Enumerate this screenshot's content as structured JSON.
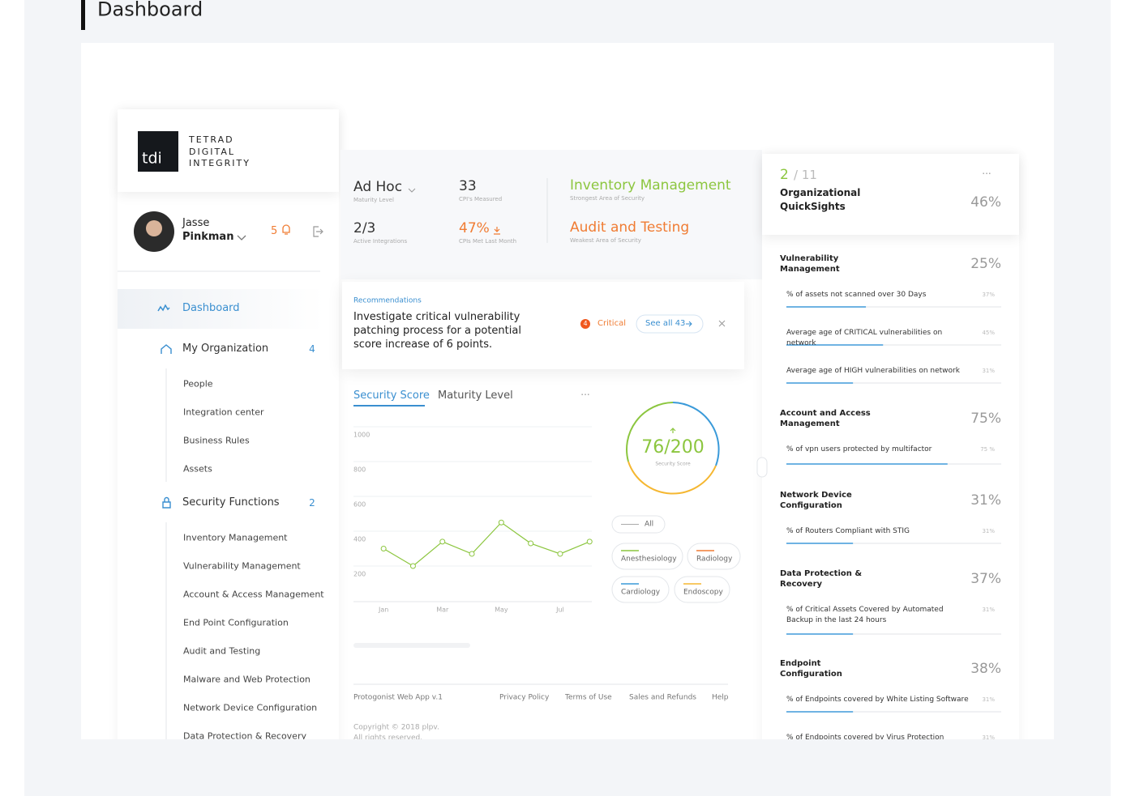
{
  "page_title": "Dashboard",
  "brand": {
    "logo": "tdi",
    "name": "TETRAD DIGITAL INTEGRITY"
  },
  "user": {
    "first_name": "Jasse",
    "last_name": "Pinkman",
    "notifications": "5"
  },
  "nav": {
    "dashboard": "Dashboard",
    "organization": {
      "label": "My Organization",
      "count": "4",
      "items": [
        "People",
        "Integration center",
        "Business Rules",
        "Assets"
      ]
    },
    "security": {
      "label": "Security Functions",
      "count": "2",
      "items": [
        "Inventory Management",
        "Vulnerability Management",
        "Account & Access Management",
        "End Point Configuration",
        "Audit and Testing",
        "Malware and Web Protection",
        "Network Device Configuration",
        "Data Protection & Recovery"
      ]
    }
  },
  "stats": [
    {
      "value": "Ad Hoc",
      "label": "Maturity Level"
    },
    {
      "value": "33",
      "label": "CPI's Measured"
    },
    {
      "value": "2/3",
      "label": "Active Integrations"
    },
    {
      "value": "47%",
      "label": "CPIs Met Last Month"
    }
  ],
  "areas": [
    {
      "value": "Inventory Management",
      "label": "Strongest Area of Security"
    },
    {
      "value": "Audit and Testing",
      "label": "Weakest Area of Security"
    }
  ],
  "recommendation": {
    "label": "Recommendations",
    "text": "Investigate critical vulnerability patching process for a potential score increase of 6 points.",
    "count": "4",
    "severity": "Critical",
    "link": "See all 43"
  },
  "tabs": [
    "Security Score",
    "Maturity Level"
  ],
  "chart_data": {
    "type": "line",
    "categories": [
      "Jan",
      null,
      "Mar",
      null,
      "May",
      null,
      "Jul",
      null
    ],
    "series": [
      {
        "name": "Security Score",
        "color": "#8cc63f",
        "values": [
          300,
          200,
          340,
          270,
          450,
          330,
          270,
          340
        ]
      }
    ],
    "ylim": [
      0,
      1000
    ],
    "yticks": [
      200,
      400,
      600,
      800,
      1000
    ],
    "grid": true
  },
  "score": {
    "value": "76/200",
    "label": "Security Score"
  },
  "filters": [
    {
      "label": "All"
    },
    {
      "label": "Anesthesiology",
      "color": "#8cc63f"
    },
    {
      "label": "Radiology",
      "color": "#f07c33"
    },
    {
      "label": "Cardiology",
      "color": "#3a9ad9"
    },
    {
      "label": "Endoscopy",
      "color": "#f5b731"
    }
  ],
  "footer": {
    "app": "Protogonist Web App v.1",
    "links": [
      "Privacy Policy",
      "Terms of Use",
      "Sales and Refunds",
      "Help"
    ],
    "copyright": "Copyright © 2018 plpv.",
    "rights": "All rights reserved."
  },
  "quicksights": {
    "index": "2",
    "total": "/ 11",
    "title": "Organizational QuickSights",
    "value": "46%",
    "sections": [
      {
        "title": "Vulnerability Management",
        "value": "25%",
        "items": [
          {
            "label": "% of assets not scanned over 30 Days",
            "value": 37,
            "value_label": "37%"
          },
          {
            "label": "Average age of CRITICAL vulnerabilities on network",
            "value": 45,
            "value_label": "45%"
          },
          {
            "label": "Average age of HIGH vulnerabilities on network",
            "value": 31,
            "value_label": "31%"
          }
        ]
      },
      {
        "title": "Account and Access Management",
        "value": "75%",
        "items": [
          {
            "label": "% of vpn users protected by multifactor",
            "value": 75,
            "value_label": "75 %"
          }
        ]
      },
      {
        "title": "Network Device Configuration",
        "value": "31%",
        "items": [
          {
            "label": "% of Routers Compliant with STIG",
            "value": 31,
            "value_label": "31%"
          }
        ]
      },
      {
        "title": "Data Protection & Recovery",
        "value": "37%",
        "items": [
          {
            "label": "% of Critical Assets Covered by Automated Backup in the last 24 hours",
            "value": 31,
            "value_label": "31%"
          }
        ]
      },
      {
        "title": "Endpoint Configuration",
        "value": "38%",
        "items": [
          {
            "label": "% of Endpoints covered by White Listing Software",
            "value": 31,
            "value_label": "31%"
          },
          {
            "label": "% of Endpoints covered by Virus Protection",
            "value": 31,
            "value_label": "31%"
          }
        ]
      }
    ]
  }
}
